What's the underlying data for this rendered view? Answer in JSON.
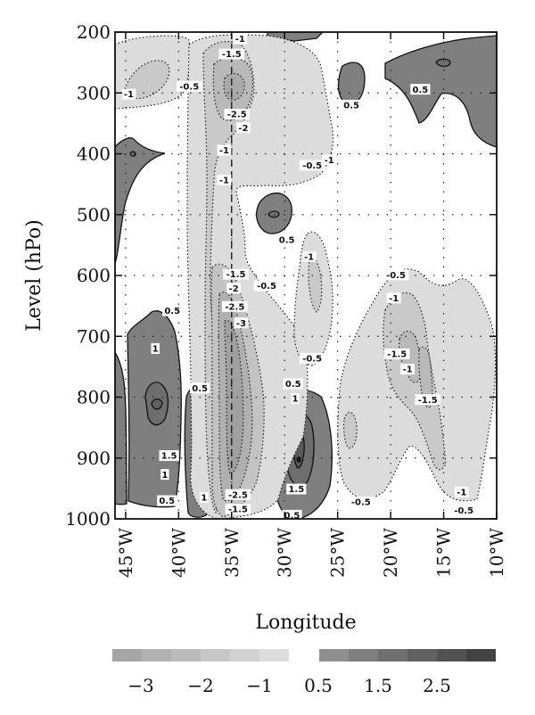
{
  "chart_data": {
    "type": "contour",
    "xlabel": "Longitude",
    "ylabel": "Level (hPo)",
    "x_ticks": [
      {
        "value": -45,
        "label": "45°W"
      },
      {
        "value": -40,
        "label": "40°W"
      },
      {
        "value": -35,
        "label": "35°W"
      },
      {
        "value": -30,
        "label": "30°W"
      },
      {
        "value": -25,
        "label": "25°W"
      },
      {
        "value": -20,
        "label": "20°W"
      },
      {
        "value": -15,
        "label": "15°W"
      },
      {
        "value": -10,
        "label": "10°W"
      }
    ],
    "y_ticks": [
      {
        "value": 200,
        "label": "200"
      },
      {
        "value": 300,
        "label": "300"
      },
      {
        "value": 400,
        "label": "400"
      },
      {
        "value": 500,
        "label": "500"
      },
      {
        "value": 600,
        "label": "600"
      },
      {
        "value": 700,
        "label": "700"
      },
      {
        "value": 800,
        "label": "800"
      },
      {
        "value": 900,
        "label": "900"
      },
      {
        "value": 1000,
        "label": "1000"
      }
    ],
    "xlim": [
      -46,
      -10
    ],
    "ylim": [
      200,
      1000
    ],
    "grid": true,
    "dashed_reference_longitude": -35,
    "contour_labels": [
      {
        "text": "-1",
        "lon": -34.2,
        "lev": 211
      },
      {
        "text": "-1.5",
        "lon": -35.0,
        "lev": 236
      },
      {
        "text": "-1",
        "lon": -44.7,
        "lev": 302
      },
      {
        "text": "-0.5",
        "lon": -39.0,
        "lev": 289
      },
      {
        "text": "-2.5",
        "lon": -34.5,
        "lev": 335
      },
      {
        "text": "-2",
        "lon": -33.9,
        "lev": 357
      },
      {
        "text": "-1",
        "lon": -35.7,
        "lev": 394
      },
      {
        "text": "-1",
        "lon": -35.7,
        "lev": 443
      },
      {
        "text": "-1",
        "lon": -25.8,
        "lev": 410
      },
      {
        "text": "-0.5",
        "lon": -27.4,
        "lev": 419
      },
      {
        "text": "0.5",
        "lon": -23.7,
        "lev": 320
      },
      {
        "text": "0.5",
        "lon": -17.2,
        "lev": 294
      },
      {
        "text": "0.5",
        "lon": -29.8,
        "lev": 541
      },
      {
        "text": "-1",
        "lon": -27.7,
        "lev": 569
      },
      {
        "text": "-1.5",
        "lon": -34.6,
        "lev": 598
      },
      {
        "text": "-0.5",
        "lon": -31.7,
        "lev": 617
      },
      {
        "text": "-2",
        "lon": -34.8,
        "lev": 621
      },
      {
        "text": "-2.5",
        "lon": -34.7,
        "lev": 651
      },
      {
        "text": "-3",
        "lon": -34.1,
        "lev": 678
      },
      {
        "text": "-0.5",
        "lon": -19.5,
        "lev": 599
      },
      {
        "text": "-1",
        "lon": -19.7,
        "lev": 637
      },
      {
        "text": "-0.5",
        "lon": -27.4,
        "lev": 736
      },
      {
        "text": "0.5",
        "lon": -40.6,
        "lev": 658
      },
      {
        "text": "1",
        "lon": -42.2,
        "lev": 720
      },
      {
        "text": "-1.5",
        "lon": -19.4,
        "lev": 729
      },
      {
        "text": "-1",
        "lon": -18.4,
        "lev": 754
      },
      {
        "text": "-1.5",
        "lon": -16.5,
        "lev": 804
      },
      {
        "text": "0.5",
        "lon": -38.0,
        "lev": 785
      },
      {
        "text": "0.5",
        "lon": -29.2,
        "lev": 778
      },
      {
        "text": "1",
        "lon": -29.0,
        "lev": 802
      },
      {
        "text": "1.5",
        "lon": -40.9,
        "lev": 896
      },
      {
        "text": "1",
        "lon": -41.3,
        "lev": 927
      },
      {
        "text": "0.5",
        "lon": -41.1,
        "lev": 970
      },
      {
        "text": "1",
        "lon": -37.6,
        "lev": 965
      },
      {
        "text": "1.5",
        "lon": -28.9,
        "lev": 951
      },
      {
        "text": "-2.5",
        "lon": -34.4,
        "lev": 960
      },
      {
        "text": "-1.5",
        "lon": -34.4,
        "lev": 984
      },
      {
        "text": "0.5",
        "lon": -29.3,
        "lev": 994
      },
      {
        "text": "-0.5",
        "lon": -22.8,
        "lev": 972
      },
      {
        "text": "-1",
        "lon": -13.3,
        "lev": 956
      },
      {
        "text": "-0.5",
        "lon": -13.1,
        "lev": 986
      }
    ],
    "colorbar": {
      "negative_labels": [
        "−3",
        "−2",
        "−1"
      ],
      "positive_labels": [
        "0.5",
        "1.5",
        "2.5"
      ],
      "negative_colors": [
        "#a6a6a6",
        "#b1b1b1",
        "#bcbcbc",
        "#c7c7c7",
        "#d2d2d2",
        "#dddddd"
      ],
      "positive_colors": [
        "#8f8f8f",
        "#7f7f7f",
        "#707070",
        "#616161",
        "#525252",
        "#434343"
      ]
    },
    "colors": {
      "positive_fill": "#7f7f7f",
      "positive_inner_fill": "#6e6e6e",
      "negative_fill": "#dcdcdc",
      "negative_mid_fill": "#c9c9c9",
      "negative_strong_fill": "#a9a9a9"
    }
  }
}
